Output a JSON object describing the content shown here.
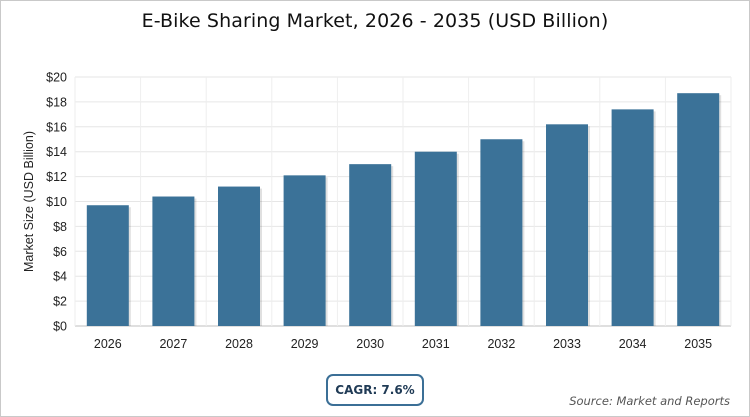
{
  "chart_data": {
    "type": "bar",
    "title": "E-Bike Sharing Market, 2026 - 2035 (USD Billion)",
    "xlabel": "",
    "ylabel": "Market Size (USD Billion)",
    "categories": [
      "2026",
      "2027",
      "2028",
      "2029",
      "2030",
      "2031",
      "2032",
      "2033",
      "2034",
      "2035"
    ],
    "values": [
      9.7,
      10.4,
      11.2,
      12.1,
      13.0,
      14.0,
      15.0,
      16.2,
      17.4,
      18.7
    ],
    "ylim": [
      0,
      20
    ],
    "yticks": [
      0,
      2,
      4,
      6,
      8,
      10,
      12,
      14,
      16,
      18,
      20
    ],
    "ytick_labels": [
      "$0",
      "$2",
      "$4",
      "$6",
      "$8",
      "$10",
      "$12",
      "$14",
      "$16",
      "$18",
      "$20"
    ],
    "grid": true,
    "legend": "none",
    "bar_color": "#3b7298"
  },
  "badge": {
    "label": "CAGR: 7.6%"
  },
  "source": "Source: Market and Reports"
}
